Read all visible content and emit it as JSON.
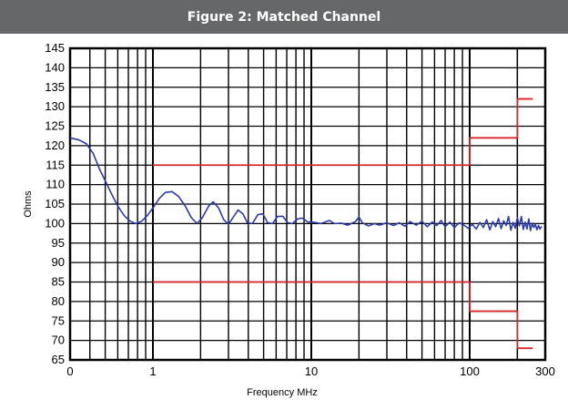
{
  "chart_data": {
    "type": "line",
    "title": "Figure 2: Matched Channel",
    "xlabel": "Frequency MHz",
    "ylabel": "Ohms",
    "x_scale": "log",
    "xlim": [
      0.3,
      300
    ],
    "ylim": [
      65,
      145
    ],
    "grid": true,
    "x_ticks": [
      {
        "value": 0.3,
        "label": "0"
      },
      {
        "value": 1,
        "label": "1"
      },
      {
        "value": 10,
        "label": "10"
      },
      {
        "value": 100,
        "label": "100"
      },
      {
        "value": 300,
        "label": "300"
      }
    ],
    "y_ticks": [
      "65",
      "70",
      "75",
      "80",
      "85",
      "90",
      "95",
      "100",
      "105",
      "110",
      "115",
      "120",
      "125",
      "130",
      "135",
      "140",
      "145"
    ],
    "series": [
      {
        "color": "#2b3aa8",
        "points": [
          [
            0.3,
            122
          ],
          [
            0.34,
            121.5
          ],
          [
            0.38,
            120.5
          ],
          [
            0.42,
            118
          ],
          [
            0.46,
            114
          ],
          [
            0.5,
            111
          ],
          [
            0.55,
            107.5
          ],
          [
            0.6,
            104.5
          ],
          [
            0.66,
            102
          ],
          [
            0.72,
            100.6
          ],
          [
            0.78,
            100
          ],
          [
            0.85,
            100.6
          ],
          [
            0.92,
            102
          ],
          [
            1.0,
            104
          ],
          [
            1.1,
            106.5
          ],
          [
            1.2,
            108
          ],
          [
            1.32,
            108.2
          ],
          [
            1.45,
            107
          ],
          [
            1.6,
            104.5
          ],
          [
            1.75,
            101.5
          ],
          [
            1.9,
            100
          ],
          [
            2.05,
            101.5
          ],
          [
            2.25,
            104.5
          ],
          [
            2.4,
            105.6
          ],
          [
            2.6,
            104
          ],
          [
            2.8,
            101
          ],
          [
            3.0,
            99.8
          ],
          [
            3.2,
            101.5
          ],
          [
            3.45,
            103.5
          ],
          [
            3.7,
            102.5
          ],
          [
            3.95,
            100.2
          ],
          [
            4.25,
            100
          ],
          [
            4.6,
            102.3
          ],
          [
            4.95,
            102.5
          ],
          [
            5.3,
            100.2
          ],
          [
            5.7,
            100
          ],
          [
            6.1,
            101.8
          ],
          [
            6.6,
            101.9
          ],
          [
            7.1,
            100.2
          ],
          [
            7.6,
            100
          ],
          [
            8.2,
            101.2
          ],
          [
            8.8,
            101.4
          ],
          [
            9.5,
            100.4
          ],
          [
            10.5,
            100.3
          ],
          [
            11.5,
            100
          ],
          [
            13,
            100.8
          ],
          [
            14,
            100
          ],
          [
            15.5,
            100.1
          ],
          [
            17,
            99.6
          ],
          [
            19,
            100.5
          ],
          [
            20,
            101.7
          ],
          [
            21,
            100.2
          ],
          [
            23,
            99.4
          ],
          [
            25,
            100
          ],
          [
            27,
            99.6
          ],
          [
            30,
            100.2
          ],
          [
            33,
            99.5
          ],
          [
            36,
            100.2
          ],
          [
            39,
            99.3
          ],
          [
            42,
            100.5
          ],
          [
            46,
            99.6
          ],
          [
            50,
            100.6
          ],
          [
            54,
            99.2
          ],
          [
            58,
            100.4
          ],
          [
            62,
            99.5
          ],
          [
            66,
            100.8
          ],
          [
            70,
            99.2
          ],
          [
            75,
            100.4
          ],
          [
            80,
            99
          ],
          [
            86,
            100.2
          ],
          [
            92,
            99.6
          ],
          [
            98,
            98.8
          ],
          [
            104,
            99.8
          ],
          [
            110,
            98.6
          ],
          [
            116,
            100.3
          ],
          [
            122,
            99
          ],
          [
            128,
            101
          ],
          [
            134,
            98.4
          ],
          [
            140,
            100.5
          ],
          [
            146,
            99.2
          ],
          [
            152,
            101.3
          ],
          [
            158,
            98.7
          ],
          [
            164,
            100.7
          ],
          [
            170,
            99.5
          ],
          [
            176,
            101.8
          ],
          [
            182,
            98.3
          ],
          [
            188,
            100.3
          ],
          [
            194,
            98.8
          ],
          [
            200,
            101.5
          ],
          [
            206,
            99.4
          ],
          [
            212,
            101.8
          ],
          [
            218,
            98.5
          ],
          [
            224,
            100.4
          ],
          [
            230,
            98.6
          ],
          [
            236,
            101.2
          ],
          [
            242,
            98.2
          ],
          [
            248,
            100.1
          ],
          [
            254,
            99
          ],
          [
            260,
            99.8
          ],
          [
            266,
            98.4
          ],
          [
            272,
            99.5
          ],
          [
            278,
            98.6
          ],
          [
            284,
            99.3
          ]
        ]
      },
      {
        "color": "#d8262b",
        "points": [
          [
            1,
            115
          ],
          [
            100,
            115
          ],
          [
            100,
            122
          ],
          [
            200,
            122
          ],
          [
            200,
            132
          ],
          [
            250,
            132
          ]
        ]
      },
      {
        "color": "#d8262b",
        "points": [
          [
            1,
            85
          ],
          [
            100,
            85
          ],
          [
            100,
            77.5
          ],
          [
            200,
            77.5
          ],
          [
            200,
            68
          ],
          [
            250,
            68
          ]
        ]
      }
    ]
  }
}
